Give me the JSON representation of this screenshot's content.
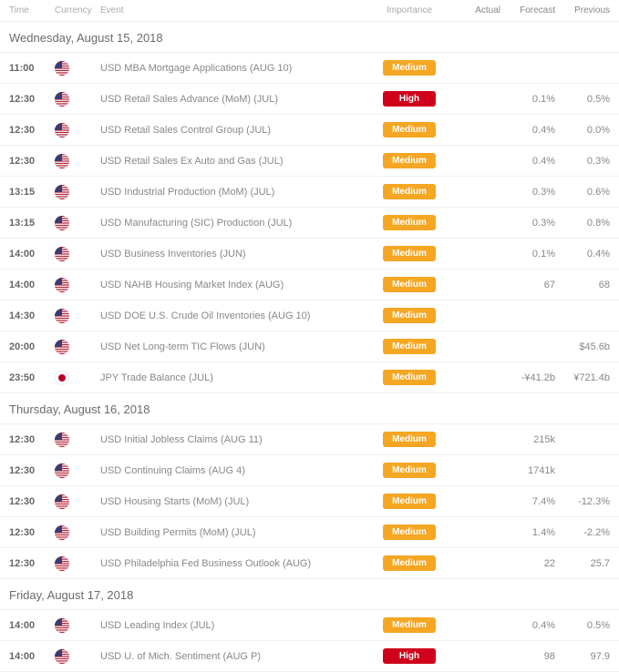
{
  "colors": {
    "medium_badge_bg": "#f5a623",
    "high_badge_bg": "#d0021b",
    "badge_text": "#ffffff",
    "header_text": "#aaaaaa",
    "day_text": "#6b6b6b",
    "body_text": "#888888",
    "border": "#eeeeee"
  },
  "flags": {
    "us": {
      "type": "us"
    },
    "jp": {
      "type": "jp"
    }
  },
  "headers": {
    "time": "Time",
    "currency": "Currency",
    "event": "Event",
    "importance": "Importance",
    "actual": "Actual",
    "forecast": "Forecast",
    "previous": "Previous"
  },
  "importance_labels": {
    "medium": "Medium",
    "high": "High"
  },
  "days": [
    {
      "label": "Wednesday, August 15, 2018",
      "events": [
        {
          "time": "11:00",
          "flag": "us",
          "event": "USD MBA Mortgage Applications (AUG 10)",
          "importance": "medium",
          "actual": "",
          "forecast": "",
          "previous": ""
        },
        {
          "time": "12:30",
          "flag": "us",
          "event": "USD Retail Sales Advance (MoM) (JUL)",
          "importance": "high",
          "actual": "",
          "forecast": "0.1%",
          "previous": "0.5%"
        },
        {
          "time": "12:30",
          "flag": "us",
          "event": "USD Retail Sales Control Group (JUL)",
          "importance": "medium",
          "actual": "",
          "forecast": "0.4%",
          "previous": "0.0%"
        },
        {
          "time": "12:30",
          "flag": "us",
          "event": "USD Retail Sales Ex Auto and Gas (JUL)",
          "importance": "medium",
          "actual": "",
          "forecast": "0.4%",
          "previous": "0.3%"
        },
        {
          "time": "13:15",
          "flag": "us",
          "event": "USD Industrial Production (MoM) (JUL)",
          "importance": "medium",
          "actual": "",
          "forecast": "0.3%",
          "previous": "0.6%"
        },
        {
          "time": "13:15",
          "flag": "us",
          "event": "USD Manufacturing (SIC) Production (JUL)",
          "importance": "medium",
          "actual": "",
          "forecast": "0.3%",
          "previous": "0.8%"
        },
        {
          "time": "14:00",
          "flag": "us",
          "event": "USD Business Inventories (JUN)",
          "importance": "medium",
          "actual": "",
          "forecast": "0.1%",
          "previous": "0.4%"
        },
        {
          "time": "14:00",
          "flag": "us",
          "event": "USD NAHB Housing Market Index (AUG)",
          "importance": "medium",
          "actual": "",
          "forecast": "67",
          "previous": "68"
        },
        {
          "time": "14:30",
          "flag": "us",
          "event": "USD DOE U.S. Crude Oil Inventories (AUG 10)",
          "importance": "medium",
          "actual": "",
          "forecast": "",
          "previous": ""
        },
        {
          "time": "20:00",
          "flag": "us",
          "event": "USD Net Long-term TIC Flows (JUN)",
          "importance": "medium",
          "actual": "",
          "forecast": "",
          "previous": "$45.6b"
        },
        {
          "time": "23:50",
          "flag": "jp",
          "event": "JPY Trade Balance (JUL)",
          "importance": "medium",
          "actual": "",
          "forecast": "-¥41.2b",
          "previous": "¥721.4b"
        }
      ]
    },
    {
      "label": "Thursday, August 16, 2018",
      "events": [
        {
          "time": "12:30",
          "flag": "us",
          "event": "USD Initial Jobless Claims (AUG 11)",
          "importance": "medium",
          "actual": "",
          "forecast": "215k",
          "previous": ""
        },
        {
          "time": "12:30",
          "flag": "us",
          "event": "USD Continuing Claims (AUG 4)",
          "importance": "medium",
          "actual": "",
          "forecast": "1741k",
          "previous": ""
        },
        {
          "time": "12:30",
          "flag": "us",
          "event": "USD Housing Starts (MoM) (JUL)",
          "importance": "medium",
          "actual": "",
          "forecast": "7.4%",
          "previous": "-12.3%"
        },
        {
          "time": "12:30",
          "flag": "us",
          "event": "USD Building Permits (MoM) (JUL)",
          "importance": "medium",
          "actual": "",
          "forecast": "1.4%",
          "previous": "-2.2%"
        },
        {
          "time": "12:30",
          "flag": "us",
          "event": "USD Philadelphia Fed Business Outlook (AUG)",
          "importance": "medium",
          "actual": "",
          "forecast": "22",
          "previous": "25.7"
        }
      ]
    },
    {
      "label": "Friday, August 17, 2018",
      "events": [
        {
          "time": "14:00",
          "flag": "us",
          "event": "USD Leading Index (JUL)",
          "importance": "medium",
          "actual": "",
          "forecast": "0.4%",
          "previous": "0.5%"
        },
        {
          "time": "14:00",
          "flag": "us",
          "event": "USD U. of Mich. Sentiment (AUG P)",
          "importance": "high",
          "actual": "",
          "forecast": "98",
          "previous": "97.9"
        }
      ]
    }
  ]
}
